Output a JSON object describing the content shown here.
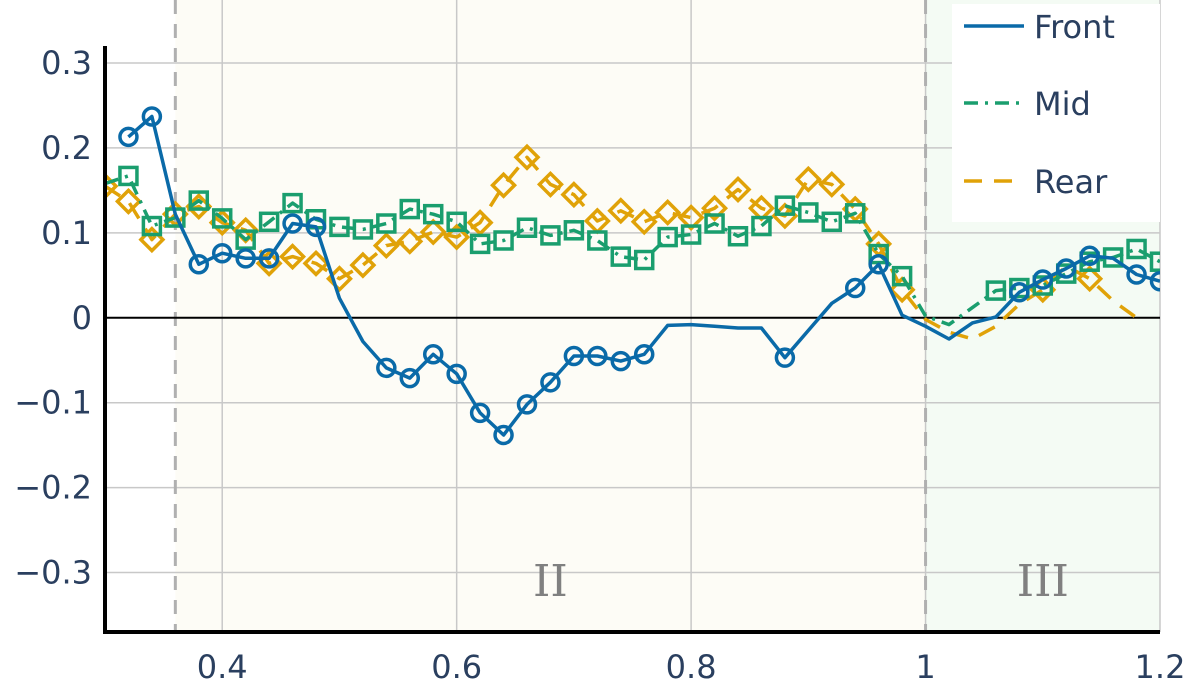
{
  "chart_data": {
    "type": "line",
    "xlim": [
      0.3,
      1.2
    ],
    "ylim": [
      -0.37,
      0.32
    ],
    "x_ticks": [
      {
        "value": 0.4,
        "label": "0.4"
      },
      {
        "value": 0.6,
        "label": "0.6"
      },
      {
        "value": 0.8,
        "label": "0.8"
      },
      {
        "value": 1.0,
        "label": "1"
      },
      {
        "value": 1.2,
        "label": "1.2"
      }
    ],
    "y_ticks": [
      {
        "value": 0.3,
        "label": "0.3"
      },
      {
        "value": 0.2,
        "label": "0.2"
      },
      {
        "value": 0.1,
        "label": "0.1"
      },
      {
        "value": 0.0,
        "label": "0"
      },
      {
        "value": -0.1,
        "label": "−0.1"
      },
      {
        "value": -0.2,
        "label": "−0.2"
      },
      {
        "value": -0.3,
        "label": "−0.3"
      }
    ],
    "grid": true,
    "zero_line": true,
    "legend_position": "top-right",
    "regions": [
      {
        "label": "",
        "x0": 0.3,
        "x1": 0.36,
        "color": "#ffffff"
      },
      {
        "label": "II",
        "x0": 0.36,
        "x1": 1.0,
        "color": "#fdfcf6"
      },
      {
        "label": "III",
        "x0": 1.0,
        "x1": 1.2,
        "color": "#f4fbf4"
      }
    ],
    "boundaries": [
      0.36,
      1.0
    ],
    "series": [
      {
        "name": "Front",
        "color": "#0a6aa8",
        "dash": "solid",
        "marker": "circle",
        "x": [
          0.32,
          0.34,
          0.36,
          0.38,
          0.4,
          0.42,
          0.44,
          0.46,
          0.48,
          0.5,
          0.52,
          0.54,
          0.56,
          0.58,
          0.6,
          0.62,
          0.64,
          0.66,
          0.68,
          0.7,
          0.72,
          0.74,
          0.76,
          0.78,
          0.8,
          0.82,
          0.84,
          0.86,
          0.88,
          0.9,
          0.92,
          0.94,
          0.96,
          0.98,
          1.0,
          1.02,
          1.04,
          1.06,
          1.08,
          1.1,
          1.12,
          1.14,
          1.16,
          1.18,
          1.2
        ],
        "y": [
          0.213,
          0.237,
          0.122,
          0.063,
          0.076,
          0.07,
          0.07,
          0.111,
          0.107,
          0.023,
          -0.028,
          -0.059,
          -0.071,
          -0.043,
          -0.066,
          -0.112,
          -0.138,
          -0.102,
          -0.076,
          -0.045,
          -0.045,
          -0.051,
          -0.043,
          -0.009,
          -0.008,
          -0.01,
          -0.012,
          -0.012,
          -0.047,
          -0.015,
          0.017,
          0.035,
          0.063,
          0.003,
          -0.01,
          -0.025,
          -0.006,
          0.001,
          0.03,
          0.045,
          0.058,
          0.073,
          0.07,
          0.051,
          0.043
        ],
        "marker_x": [
          0.32,
          0.34,
          0.38,
          0.4,
          0.42,
          0.44,
          0.46,
          0.48,
          0.54,
          0.56,
          0.58,
          0.6,
          0.62,
          0.64,
          0.66,
          0.68,
          0.7,
          0.72,
          0.74,
          0.76,
          0.88,
          0.94,
          0.96,
          1.08,
          1.1,
          1.12,
          1.14,
          1.18,
          1.2
        ]
      },
      {
        "name": "Mid",
        "color": "#1a9e6e",
        "dash": "dashdot",
        "marker": "square",
        "x": [
          0.3,
          0.32,
          0.34,
          0.36,
          0.38,
          0.4,
          0.42,
          0.44,
          0.46,
          0.48,
          0.5,
          0.52,
          0.54,
          0.56,
          0.58,
          0.6,
          0.62,
          0.64,
          0.66,
          0.68,
          0.7,
          0.72,
          0.74,
          0.76,
          0.78,
          0.8,
          0.82,
          0.84,
          0.86,
          0.88,
          0.9,
          0.92,
          0.94,
          0.96,
          0.98,
          1.0,
          1.02,
          1.04,
          1.06,
          1.08,
          1.1,
          1.12,
          1.14,
          1.16,
          1.18,
          1.2
        ],
        "y": [
          0.158,
          0.167,
          0.108,
          0.118,
          0.138,
          0.117,
          0.092,
          0.113,
          0.135,
          0.116,
          0.107,
          0.104,
          0.111,
          0.128,
          0.122,
          0.113,
          0.087,
          0.091,
          0.106,
          0.097,
          0.103,
          0.091,
          0.072,
          0.068,
          0.095,
          0.098,
          0.111,
          0.096,
          0.108,
          0.132,
          0.124,
          0.113,
          0.123,
          0.075,
          0.049,
          0.002,
          -0.008,
          0.012,
          0.032,
          0.035,
          0.038,
          0.052,
          0.066,
          0.071,
          0.081,
          0.066
        ],
        "marker_x": [
          0.32,
          0.34,
          0.36,
          0.38,
          0.4,
          0.42,
          0.44,
          0.46,
          0.48,
          0.5,
          0.52,
          0.54,
          0.56,
          0.58,
          0.6,
          0.62,
          0.64,
          0.66,
          0.68,
          0.7,
          0.72,
          0.74,
          0.76,
          0.78,
          0.8,
          0.82,
          0.84,
          0.86,
          0.88,
          0.9,
          0.92,
          0.94,
          0.96,
          0.98,
          1.06,
          1.08,
          1.1,
          1.12,
          1.14,
          1.16,
          1.18,
          1.2
        ]
      },
      {
        "name": "Rear",
        "color": "#e0a208",
        "dash": "dash",
        "marker": "diamond",
        "x": [
          0.3,
          0.32,
          0.34,
          0.36,
          0.38,
          0.4,
          0.42,
          0.44,
          0.46,
          0.48,
          0.5,
          0.52,
          0.54,
          0.56,
          0.58,
          0.6,
          0.62,
          0.64,
          0.66,
          0.68,
          0.7,
          0.72,
          0.74,
          0.76,
          0.78,
          0.8,
          0.82,
          0.84,
          0.86,
          0.88,
          0.9,
          0.92,
          0.94,
          0.96,
          0.98,
          1.0,
          1.02,
          1.04,
          1.06,
          1.08,
          1.1,
          1.12,
          1.14,
          1.16,
          1.18
        ],
        "y": [
          0.155,
          0.137,
          0.092,
          0.122,
          0.131,
          0.112,
          0.103,
          0.064,
          0.072,
          0.064,
          0.046,
          0.062,
          0.085,
          0.09,
          0.101,
          0.095,
          0.112,
          0.156,
          0.189,
          0.157,
          0.145,
          0.114,
          0.126,
          0.113,
          0.124,
          0.118,
          0.129,
          0.151,
          0.129,
          0.12,
          0.163,
          0.157,
          0.128,
          0.087,
          0.033,
          -0.002,
          -0.017,
          -0.025,
          -0.01,
          0.016,
          0.033,
          0.061,
          0.046,
          0.02,
          0.0
        ],
        "marker_x": [
          0.3,
          0.32,
          0.34,
          0.36,
          0.38,
          0.4,
          0.42,
          0.44,
          0.46,
          0.48,
          0.5,
          0.52,
          0.54,
          0.56,
          0.58,
          0.6,
          0.62,
          0.64,
          0.66,
          0.68,
          0.7,
          0.72,
          0.74,
          0.76,
          0.78,
          0.8,
          0.82,
          0.84,
          0.86,
          0.88,
          0.9,
          0.92,
          0.94,
          0.96,
          0.98,
          1.1,
          1.14
        ]
      }
    ]
  }
}
